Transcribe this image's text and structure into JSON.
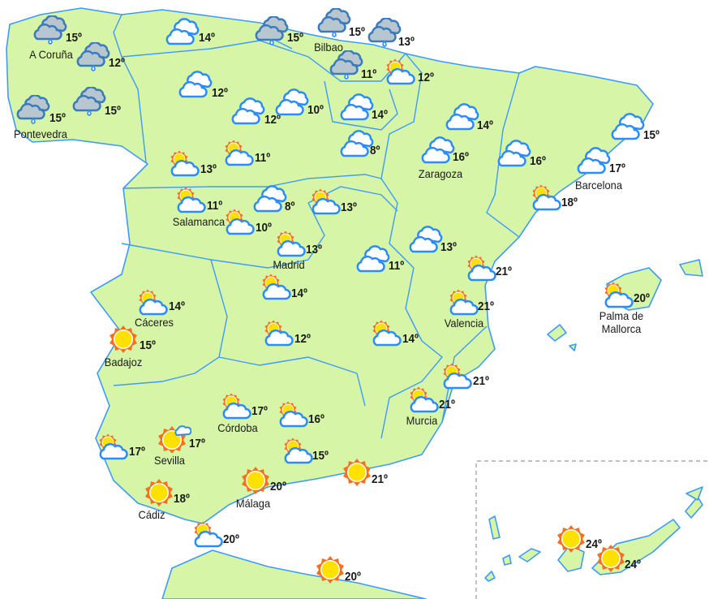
{
  "colors": {
    "land": "#d6f5a6",
    "border": "#3d9bff",
    "sea": "#ffffff",
    "sun_rays": "#f7701c",
    "sun_disc": "#ffe100",
    "rain_cloud": "#b7c6cf",
    "cloud_outline": "#2b8cff"
  },
  "stations": [
    {
      "city": "A Coruña",
      "temp": "15º",
      "icon": "rain-cloud"
    },
    {
      "city": "",
      "temp": "12º",
      "icon": "rain-cloud"
    },
    {
      "city": "Pontevedra",
      "temp": "15º",
      "icon": "rain-cloud"
    },
    {
      "city": "",
      "temp": "15º",
      "icon": "rain-cloud"
    },
    {
      "city": "",
      "temp": "14º",
      "icon": "cloud"
    },
    {
      "city": "",
      "temp": "15º",
      "icon": "rain-cloud"
    },
    {
      "city": "Bilbao",
      "temp": "15º",
      "icon": "rain-cloud"
    },
    {
      "city": "",
      "temp": "13º",
      "icon": "rain-cloud"
    },
    {
      "city": "",
      "temp": "11º",
      "icon": "rain-cloud"
    },
    {
      "city": "",
      "temp": "12º",
      "icon": "sun-cloud"
    },
    {
      "city": "",
      "temp": "12º",
      "icon": "cloud"
    },
    {
      "city": "",
      "temp": "12º",
      "icon": "cloud"
    },
    {
      "city": "",
      "temp": "10º",
      "icon": "cloud"
    },
    {
      "city": "",
      "temp": "14º",
      "icon": "cloud"
    },
    {
      "city": "",
      "temp": "14º",
      "icon": "cloud"
    },
    {
      "city": "",
      "temp": "8º",
      "icon": "cloud"
    },
    {
      "city": "Zaragoza",
      "temp": "16º",
      "icon": "cloud"
    },
    {
      "city": "",
      "temp": "16º",
      "icon": "cloud"
    },
    {
      "city": "",
      "temp": "15º",
      "icon": "cloud"
    },
    {
      "city": "Barcelona",
      "temp": "17º",
      "icon": "cloud"
    },
    {
      "city": "",
      "temp": "13º",
      "icon": "sun-cloud"
    },
    {
      "city": "",
      "temp": "11º",
      "icon": "sun-cloud"
    },
    {
      "city": "Salamanca",
      "temp": "11º",
      "icon": "sun-cloud"
    },
    {
      "city": "",
      "temp": "8º",
      "icon": "cloud"
    },
    {
      "city": "",
      "temp": "13º",
      "icon": "sun-cloud"
    },
    {
      "city": "",
      "temp": "10º",
      "icon": "sun-cloud"
    },
    {
      "city": "Madrid",
      "temp": "13º",
      "icon": "sun-cloud"
    },
    {
      "city": "",
      "temp": "18º",
      "icon": "sun-cloud"
    },
    {
      "city": "",
      "temp": "13º",
      "icon": "cloud"
    },
    {
      "city": "",
      "temp": "11º",
      "icon": "cloud"
    },
    {
      "city": "",
      "temp": "21º",
      "icon": "sun-cloud"
    },
    {
      "city": "",
      "temp": "14º",
      "icon": "sun-cloud"
    },
    {
      "city": "Cáceres",
      "temp": "14º",
      "icon": "sun-cloud"
    },
    {
      "city": "Valencia",
      "temp": "21º",
      "icon": "sun-cloud"
    },
    {
      "city": "Palma de\nMallorca",
      "temp": "20º",
      "icon": "sun-cloud"
    },
    {
      "city": "Badajoz",
      "temp": "15º",
      "icon": "sun"
    },
    {
      "city": "",
      "temp": "12º",
      "icon": "sun-cloud"
    },
    {
      "city": "",
      "temp": "14º",
      "icon": "sun-cloud"
    },
    {
      "city": "",
      "temp": "21º",
      "icon": "sun-cloud"
    },
    {
      "city": "Murcia",
      "temp": "21º",
      "icon": "sun-cloud"
    },
    {
      "city": "Córdoba",
      "temp": "17º",
      "icon": "sun-cloud"
    },
    {
      "city": "",
      "temp": "16º",
      "icon": "sun-cloud"
    },
    {
      "city": "",
      "temp": "17º",
      "icon": "sun-cloud"
    },
    {
      "city": "Sevilla",
      "temp": "17º",
      "icon": "sun-small-cloud"
    },
    {
      "city": "",
      "temp": "15º",
      "icon": "sun-cloud"
    },
    {
      "city": "Málaga",
      "temp": "20º",
      "icon": "sun"
    },
    {
      "city": "",
      "temp": "21º",
      "icon": "sun"
    },
    {
      "city": "Cádiz",
      "temp": "18º",
      "icon": "sun"
    },
    {
      "city": "",
      "temp": "20º",
      "icon": "sun-cloud"
    },
    {
      "city": "",
      "temp": "20º",
      "icon": "sun"
    },
    {
      "city": "",
      "temp": "24º",
      "icon": "sun"
    },
    {
      "city": "",
      "temp": "24º",
      "icon": "sun"
    }
  ]
}
